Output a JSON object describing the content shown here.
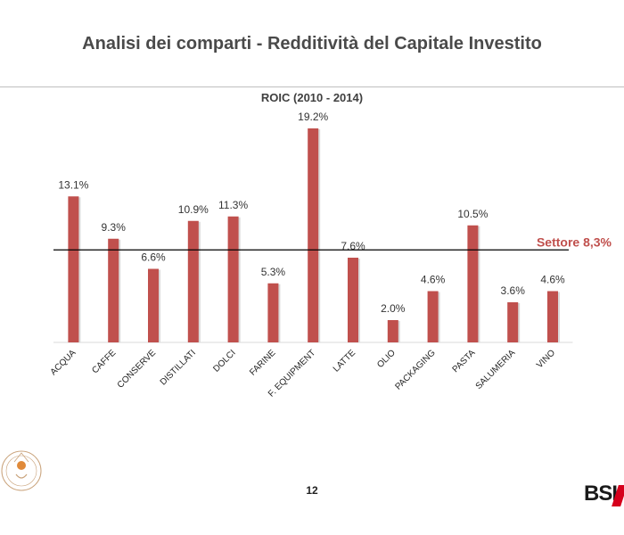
{
  "slide": {
    "title": "Analisi dei comparti - Redditività del Capitale Investito",
    "page_number": "12",
    "logo_text": "BSI"
  },
  "chart_data": {
    "type": "bar",
    "title": "ROIC (2010 - 2014)",
    "categories": [
      "ACQUA",
      "CAFFE",
      "CONSERVE",
      "DISTILLATI",
      "DOLCI",
      "FARINE",
      "F. EQUIPMENT",
      "LATTE",
      "OLIO",
      "PACKAGING",
      "PASTA",
      "SALUMERIA",
      "VINO"
    ],
    "values": [
      13.1,
      9.3,
      6.6,
      10.9,
      11.3,
      5.3,
      19.2,
      7.6,
      2.0,
      4.6,
      10.5,
      3.6,
      4.6
    ],
    "value_labels": [
      "13.1%",
      "9.3%",
      "6.6%",
      "10.9%",
      "11.3%",
      "5.3%",
      "19.2%",
      "7.6%",
      "2.0%",
      "4.6%",
      "10.5%",
      "3.6%",
      "4.6%"
    ],
    "reference_line": {
      "value": 8.3,
      "label": "Settore 8,3%",
      "color": "#c0504d"
    },
    "bar_color": "#c0504d",
    "ylim": [
      0,
      20
    ],
    "grid": false,
    "legend": "none",
    "xlabel": "",
    "ylabel": ""
  }
}
